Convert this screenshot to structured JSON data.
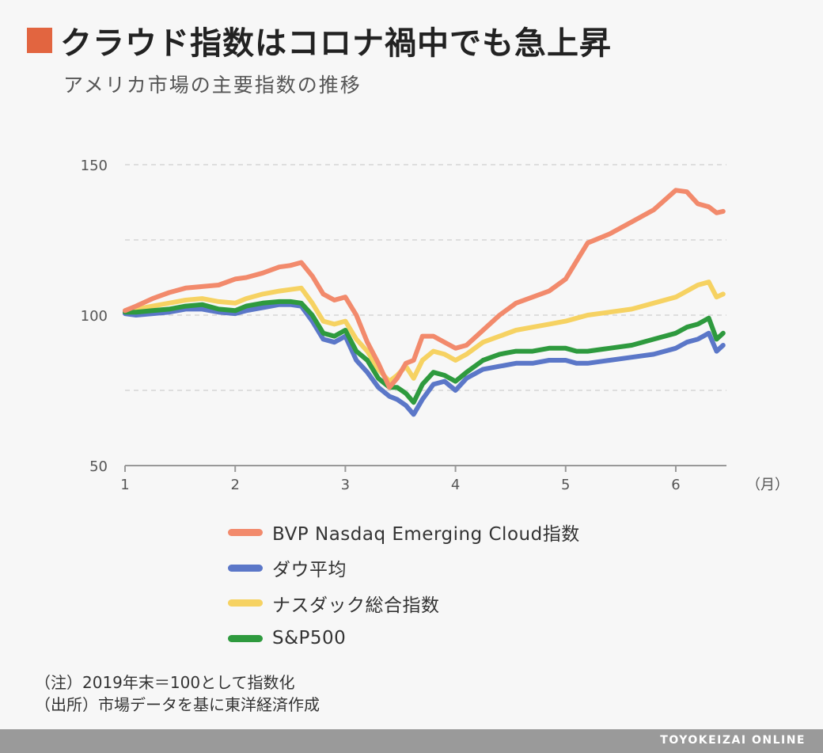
{
  "header": {
    "title": "クラウド指数はコロナ禍中でも急上昇",
    "subtitle": "アメリカ市場の主要指数の推移",
    "accent_color": "#e26540"
  },
  "notes": {
    "note": "（注）2019年末＝100として指数化",
    "source": "（出所）市場データを基に東洋経済作成"
  },
  "footer": {
    "brand": "TOYOKEIZAI ONLINE"
  },
  "chart_data": {
    "type": "line",
    "title": "",
    "xlabel": "（月）",
    "ylabel": "",
    "x_ticks": [
      "1",
      "2",
      "3",
      "4",
      "5",
      "6"
    ],
    "y_ticks": [
      "50",
      "100",
      "150"
    ],
    "ylim": [
      50,
      150
    ],
    "xlim": [
      1.0,
      6.46
    ],
    "grid": true,
    "legend_position": "bottom",
    "series": [
      {
        "name": "BVP Nasdaq Emerging Cloud指数",
        "color": "#f28a6c",
        "x": [
          1.0,
          1.1,
          1.25,
          1.4,
          1.55,
          1.7,
          1.85,
          2.0,
          2.1,
          2.25,
          2.4,
          2.5,
          2.6,
          2.7,
          2.8,
          2.9,
          3.0,
          3.1,
          3.2,
          3.3,
          3.4,
          3.47,
          3.55,
          3.62,
          3.7,
          3.8,
          3.9,
          4.0,
          4.1,
          4.25,
          4.4,
          4.55,
          4.7,
          4.85,
          5.0,
          5.1,
          5.2,
          5.4,
          5.6,
          5.8,
          6.0,
          6.1,
          6.2,
          6.3,
          6.37,
          6.43
        ],
        "values": [
          101.5,
          103,
          105.5,
          107.5,
          109,
          109.5,
          110,
          112,
          112.5,
          114,
          116,
          116.5,
          117.5,
          113,
          107,
          105,
          106,
          100,
          91,
          84,
          76,
          79,
          84,
          85,
          93,
          93,
          91,
          89,
          90,
          95,
          100,
          104,
          106,
          108,
          112,
          118,
          124,
          127,
          131,
          135,
          141.5,
          141,
          137,
          136,
          134,
          134.5
        ]
      },
      {
        "name": "ダウ平均",
        "color": "#5b77c8",
        "x": [
          1.0,
          1.1,
          1.25,
          1.4,
          1.55,
          1.7,
          1.85,
          2.0,
          2.1,
          2.25,
          2.4,
          2.5,
          2.6,
          2.7,
          2.8,
          2.9,
          3.0,
          3.1,
          3.2,
          3.3,
          3.4,
          3.47,
          3.55,
          3.62,
          3.7,
          3.8,
          3.9,
          4.0,
          4.1,
          4.25,
          4.4,
          4.55,
          4.7,
          4.85,
          5.0,
          5.1,
          5.2,
          5.4,
          5.6,
          5.8,
          6.0,
          6.1,
          6.2,
          6.3,
          6.37,
          6.43
        ],
        "values": [
          100.5,
          100,
          100.5,
          101,
          102,
          102,
          101,
          100.5,
          101.5,
          102.5,
          103.5,
          103.5,
          103,
          98,
          92,
          91,
          93,
          85,
          81,
          76,
          73,
          72,
          70,
          67,
          72,
          77,
          78,
          75,
          79,
          82,
          83,
          84,
          84,
          85,
          85,
          84,
          84,
          85,
          86,
          87,
          89,
          91,
          92,
          94,
          88,
          90
        ]
      },
      {
        "name": "ナスダック総合指数",
        "color": "#f6d262",
        "x": [
          1.0,
          1.1,
          1.25,
          1.4,
          1.55,
          1.7,
          1.85,
          2.0,
          2.1,
          2.25,
          2.4,
          2.5,
          2.6,
          2.7,
          2.8,
          2.9,
          3.0,
          3.1,
          3.2,
          3.3,
          3.4,
          3.47,
          3.55,
          3.62,
          3.7,
          3.8,
          3.9,
          4.0,
          4.1,
          4.25,
          4.4,
          4.55,
          4.7,
          4.85,
          5.0,
          5.1,
          5.2,
          5.4,
          5.6,
          5.8,
          6.0,
          6.1,
          6.2,
          6.3,
          6.37,
          6.43
        ],
        "values": [
          101.5,
          102,
          103,
          104,
          105,
          105.5,
          104.5,
          104,
          105.5,
          107,
          108,
          108.5,
          109,
          104,
          98,
          97,
          98,
          92,
          88,
          82,
          78,
          80,
          83,
          79,
          85,
          88,
          87,
          85,
          87,
          91,
          93,
          95,
          96,
          97,
          98,
          99,
          100,
          101,
          102,
          104,
          106,
          108,
          110,
          111,
          106,
          107
        ]
      },
      {
        "name": "S&P500",
        "color": "#2e9a3e",
        "x": [
          1.0,
          1.1,
          1.25,
          1.4,
          1.55,
          1.7,
          1.85,
          2.0,
          2.1,
          2.25,
          2.4,
          2.5,
          2.6,
          2.7,
          2.8,
          2.9,
          3.0,
          3.1,
          3.2,
          3.3,
          3.4,
          3.47,
          3.55,
          3.62,
          3.7,
          3.8,
          3.9,
          4.0,
          4.1,
          4.25,
          4.4,
          4.55,
          4.7,
          4.85,
          5.0,
          5.1,
          5.2,
          5.4,
          5.6,
          5.8,
          6.0,
          6.1,
          6.2,
          6.3,
          6.37,
          6.43
        ],
        "values": [
          101,
          101,
          101.5,
          102,
          103,
          103.5,
          102,
          101.5,
          103,
          104,
          104.5,
          104.5,
          104,
          100,
          94,
          93,
          95,
          88,
          85,
          79,
          76,
          76,
          74,
          71,
          77,
          81,
          80,
          78,
          81,
          85,
          87,
          88,
          88,
          89,
          89,
          88,
          88,
          89,
          90,
          92,
          94,
          96,
          97,
          99,
          92,
          94
        ]
      }
    ]
  }
}
